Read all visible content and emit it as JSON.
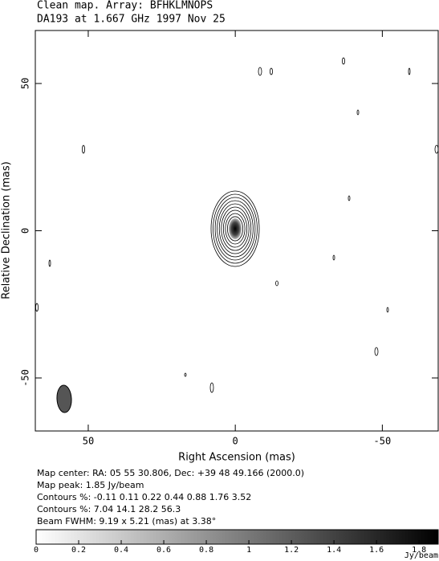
{
  "chart_data": {
    "type": "contour",
    "title": "Clean map.  Array: BFHKLMNOPS",
    "subtitle": "DA193 at 1.667 GHz 1997 Nov 25",
    "x_label": "Right Ascension  (mas)",
    "y_label": "Relative Declination  (mas)",
    "xlim": [
      68,
      -69
    ],
    "ylim": [
      -68,
      68
    ],
    "xticks": [
      50,
      0,
      -50
    ],
    "yticks": [
      50,
      0,
      -50
    ],
    "info": [
      "Map center:  RA: 05 55 30.806,  Dec: +39 48 49.166 (2000.0)",
      "Map peak: 1.85 Jy/beam",
      "Contours %: -0.11 0.11 0.22 0.44 0.88 1.76 3.52",
      "Contours %: 7.04 14.1 28.2 56.3",
      "Beam FWHM: 9.19 x 5.21 (mas) at 3.38°"
    ],
    "colorbar": {
      "lim": [
        0,
        1.89
      ],
      "ticks": [
        0,
        0.2,
        0.4,
        0.6,
        0.8,
        1,
        1.2,
        1.4,
        1.6,
        1.8
      ],
      "unit": "Jy/beam"
    }
  }
}
